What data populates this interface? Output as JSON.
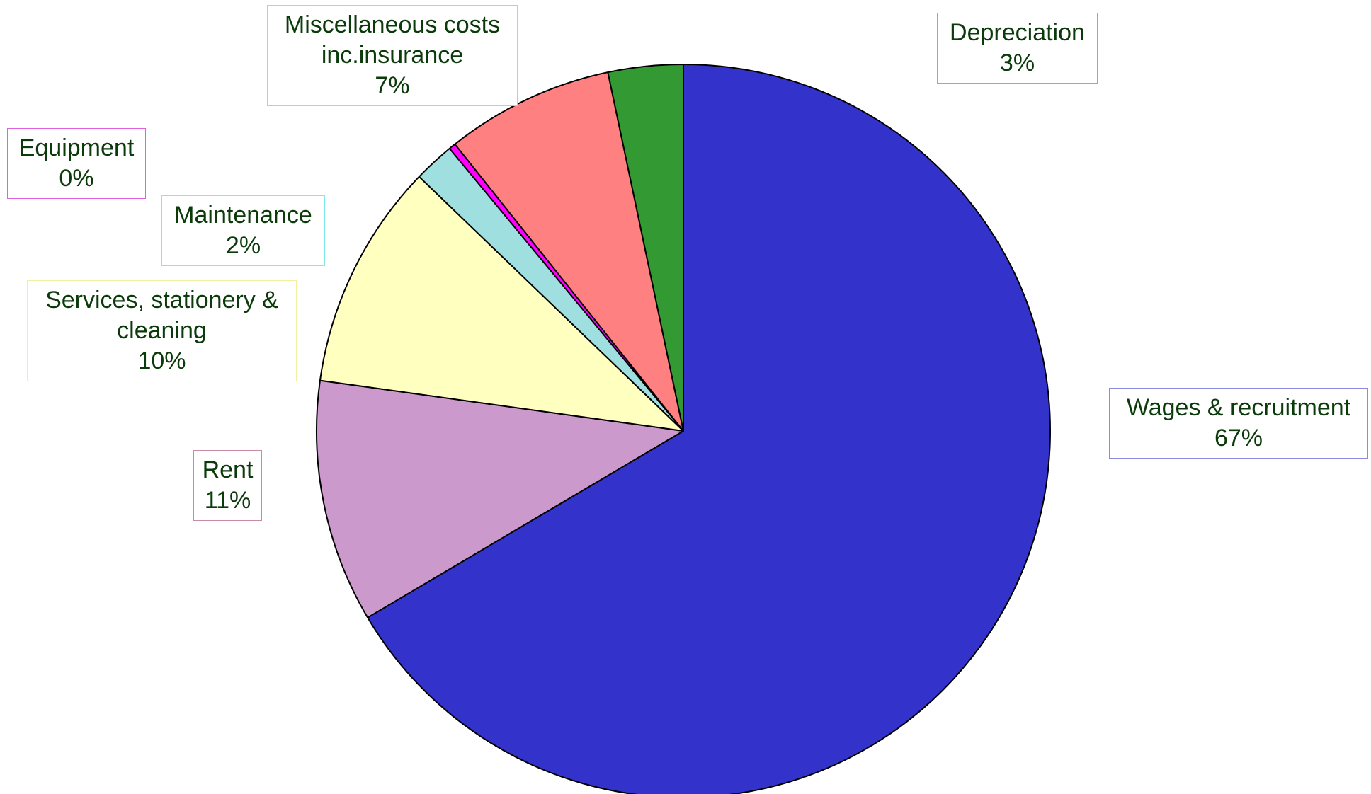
{
  "chart_data": {
    "type": "pie",
    "title": "",
    "slices": [
      {
        "name": "Wages & recruitment",
        "label_lines": [
          "Wages & recruitment"
        ],
        "percent_label": "67%",
        "value": 66.5,
        "color": "#3333cc",
        "border_color": "#8a8adf"
      },
      {
        "name": "Rent",
        "label_lines": [
          "Rent"
        ],
        "percent_label": "11%",
        "value": 10.7,
        "color": "#cc99cc",
        "border_color": "#c98aa6"
      },
      {
        "name": "Services, stationery & cleaning",
        "label_lines": [
          "Services, stationery &",
          "cleaning"
        ],
        "percent_label": "10%",
        "value": 10.0,
        "color": "#ffffc0",
        "border_color": "#f0f0a0"
      },
      {
        "name": "Maintenance",
        "label_lines": [
          "Maintenance"
        ],
        "percent_label": "2%",
        "value": 1.8,
        "color": "#a0dfdf",
        "border_color": "#80eaea"
      },
      {
        "name": "Equipment",
        "label_lines": [
          "Equipment"
        ],
        "percent_label": "0%",
        "value": 0.3,
        "color": "#ff00ff",
        "border_color": "#e060e0"
      },
      {
        "name": "Miscellaneous costs inc.insurance",
        "label_lines": [
          "Miscellaneous costs",
          "inc.insurance"
        ],
        "percent_label": "7%",
        "value": 7.4,
        "color": "#ff8080",
        "border_color": "#ffb0b0"
      },
      {
        "name": "Depreciation",
        "label_lines": [
          "Depreciation"
        ],
        "percent_label": "3%",
        "value": 3.3,
        "color": "#339933",
        "border_color": "#80c080"
      }
    ],
    "start": "12 o'clock",
    "direction": "clockwise",
    "legend": "none"
  }
}
